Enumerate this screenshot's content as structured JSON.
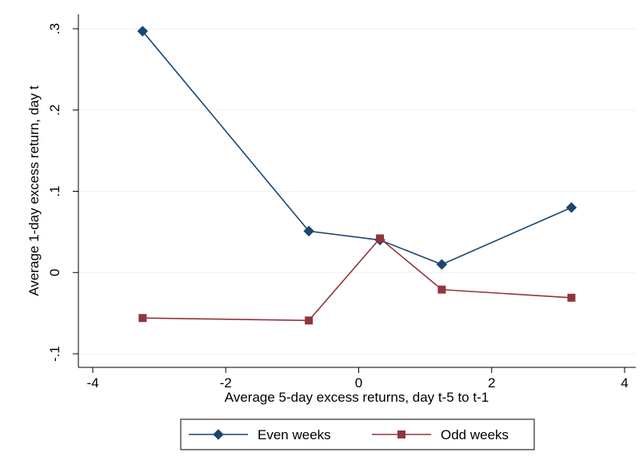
{
  "chart_data": {
    "type": "line",
    "title": "",
    "xlabel": "Average 5-day excess returns, day t-5 to t-1",
    "ylabel": "Average 1-day excess return, day t",
    "xlim": [
      -4,
      4
    ],
    "ylim": [
      -0.1,
      0.3
    ],
    "x_ticks": [
      -4,
      -2,
      0,
      2,
      4
    ],
    "x_tick_labels": [
      "-4",
      "-2",
      "0",
      "2",
      "4"
    ],
    "y_ticks": [
      -0.1,
      0,
      0.1,
      0.2,
      0.3
    ],
    "y_tick_labels": [
      "-.1",
      "0",
      ".1",
      ".2",
      ".3"
    ],
    "grid": true,
    "legend_position": "bottom",
    "series": [
      {
        "name": "Even weeks",
        "color": "#1a476f",
        "marker": "diamond",
        "points": [
          {
            "x": -3.25,
            "y": 0.297
          },
          {
            "x": -0.75,
            "y": 0.051
          },
          {
            "x": 0.32,
            "y": 0.04
          },
          {
            "x": 1.25,
            "y": 0.01
          },
          {
            "x": 3.2,
            "y": 0.08
          }
        ]
      },
      {
        "name": "Odd weeks",
        "color": "#90353b",
        "marker": "square",
        "points": [
          {
            "x": -3.25,
            "y": -0.056
          },
          {
            "x": -0.75,
            "y": -0.059
          },
          {
            "x": 0.32,
            "y": 0.042
          },
          {
            "x": 1.25,
            "y": -0.021
          },
          {
            "x": 3.2,
            "y": -0.031
          }
        ]
      }
    ]
  }
}
